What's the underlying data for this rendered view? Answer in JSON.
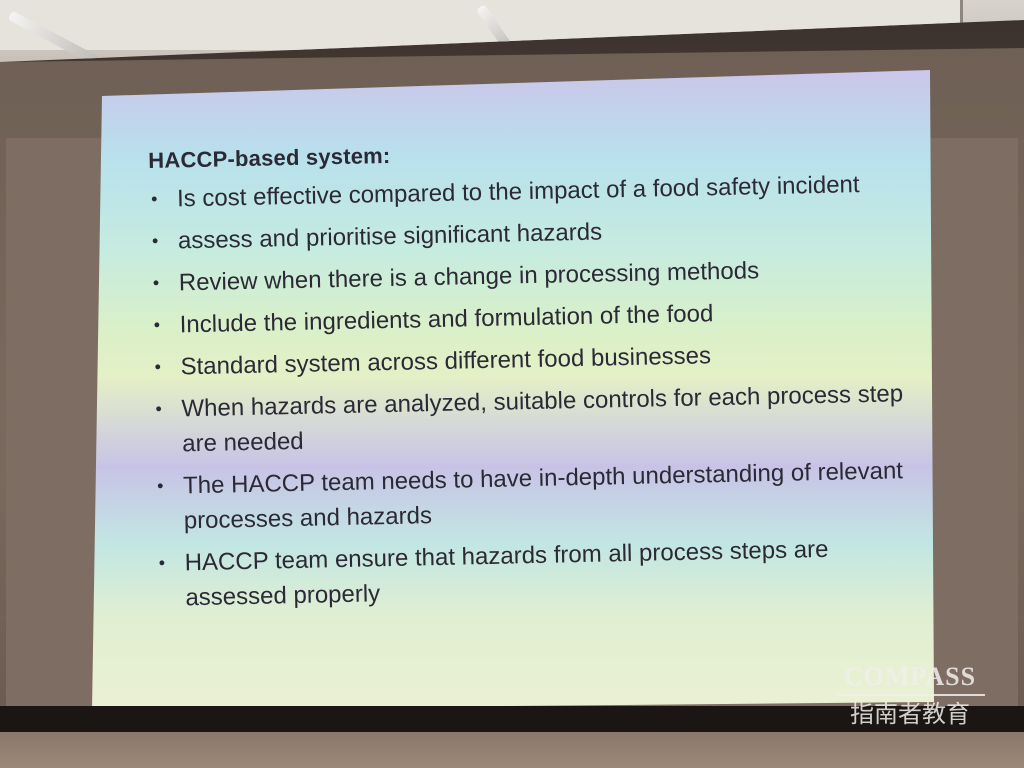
{
  "slide": {
    "heading": "HACCP-based system:",
    "bullets": [
      "Is cost effective compared to the impact of a food safety incident",
      "assess and prioritise significant hazards",
      "Review when there is a change in processing methods",
      "Include the ingredients and formulation of the food",
      "Standard system across different food businesses",
      "When hazards are analyzed, suitable controls for each process step are needed",
      "The HACCP team needs to have in-depth understanding of relevant processes and hazards",
      "HACCP team ensure that hazards from all process steps are assessed properly"
    ]
  },
  "watermark": {
    "brand": "COMPASS",
    "subtitle": "指南者教育"
  }
}
